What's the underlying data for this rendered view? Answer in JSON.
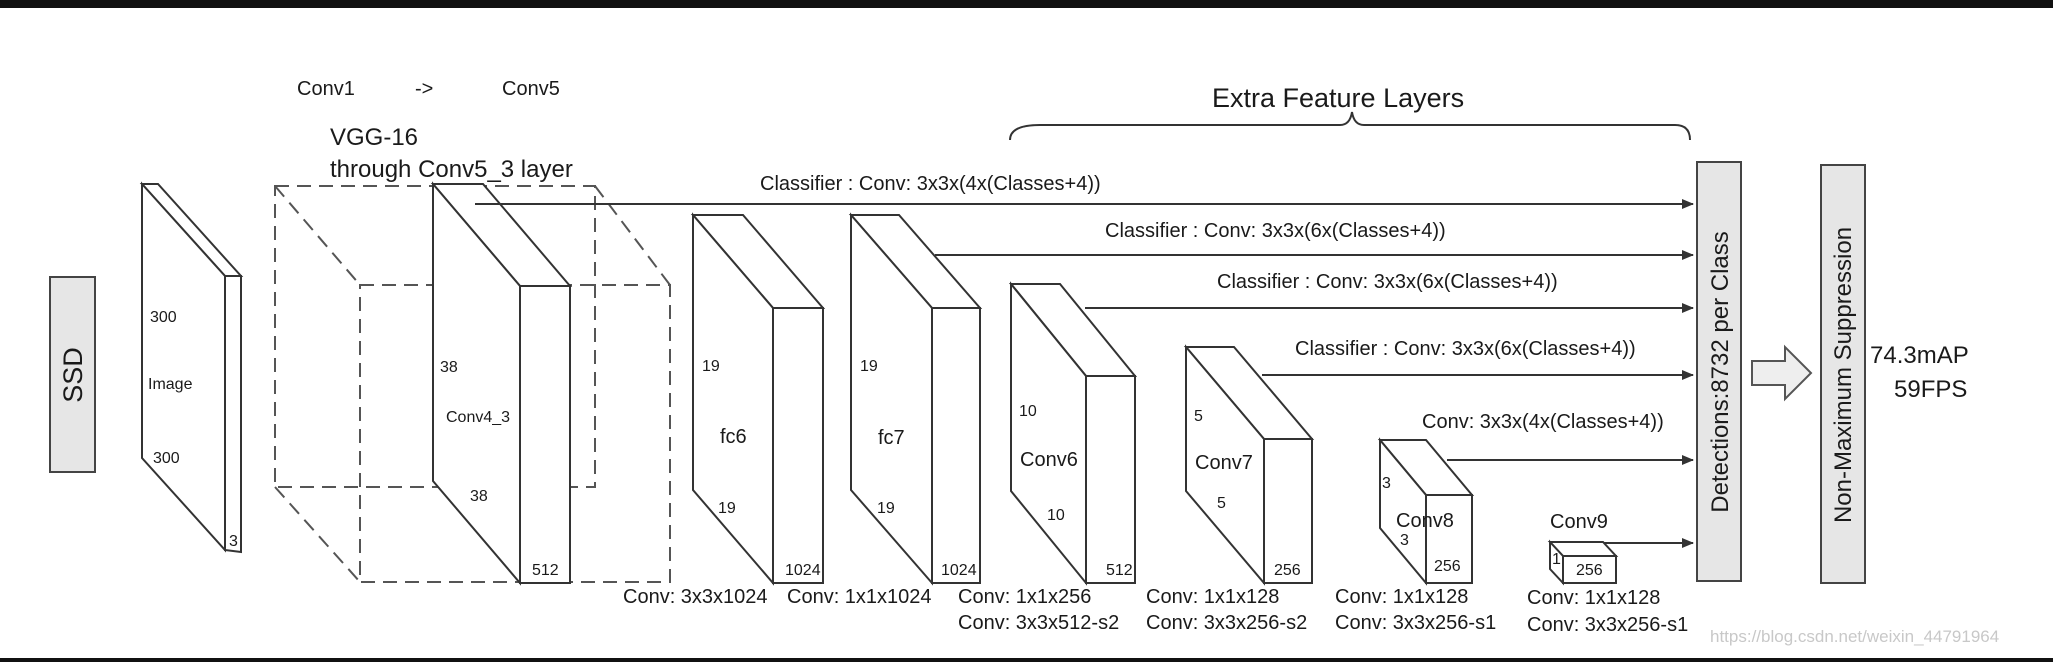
{
  "header_labels": {
    "conv1": "Conv1",
    "arrow": "->",
    "conv5": "Conv5",
    "extra": "Extra Feature Layers",
    "vgg_line1": "VGG-16",
    "vgg_line2": "through Conv5_3 layer"
  },
  "left_box": "SSD",
  "image_block": {
    "label": "Image",
    "dim1": "300",
    "dim2": "300",
    "depth": "3"
  },
  "conv4_block": {
    "label": "Conv4_3",
    "dim1": "38",
    "dim2": "38",
    "depth": "512"
  },
  "fc6_block": {
    "label": "fc6",
    "dim1": "19",
    "dim2": "19",
    "depth": "1024"
  },
  "fc7_block": {
    "label": "fc7",
    "dim1": "19",
    "dim2": "19",
    "depth": "1024"
  },
  "conv6_block": {
    "label": "Conv6",
    "dim1": "10",
    "dim2": "10",
    "depth": "512"
  },
  "conv7_block": {
    "label": "Conv7",
    "dim1": "5",
    "dim2": "5",
    "depth": "256"
  },
  "conv8_block": {
    "label": "Conv8",
    "dim1": "3",
    "dim2": "3",
    "depth": "256"
  },
  "conv9_block": {
    "label": "Conv9",
    "dim1": "1",
    "depth": "256"
  },
  "classifiers": [
    "Classifier : Conv: 3x3x(4x(Classes+4))",
    "Classifier : Conv: 3x3x(6x(Classes+4))",
    "Classifier : Conv: 3x3x(6x(Classes+4))",
    "Classifier : Conv: 3x3x(6x(Classes+4))",
    "Conv: 3x3x(4x(Classes+4))"
  ],
  "bottom_labels": {
    "fc6": "Conv: 3x3x1024",
    "fc7": "Conv: 1x1x1024",
    "conv6_a": "Conv: 1x1x256",
    "conv6_b": "Conv:  3x3x512-s2",
    "conv7_a": "Conv: 1x1x128",
    "conv7_b": "Conv: 3x3x256-s2",
    "conv8_a": "Conv: 1x1x128",
    "conv8_b": "Conv: 3x3x256-s1",
    "conv9_a": "Conv: 1x1x128",
    "conv9_b": "Conv: 3x3x256-s1"
  },
  "detections": "Detections:8732  per Class",
  "nms": "Non-Maximum Suppression",
  "result_map": "74.3mAP",
  "result_fps": "59FPS",
  "watermark": "https://blog.csdn.net/weixin_44791964"
}
